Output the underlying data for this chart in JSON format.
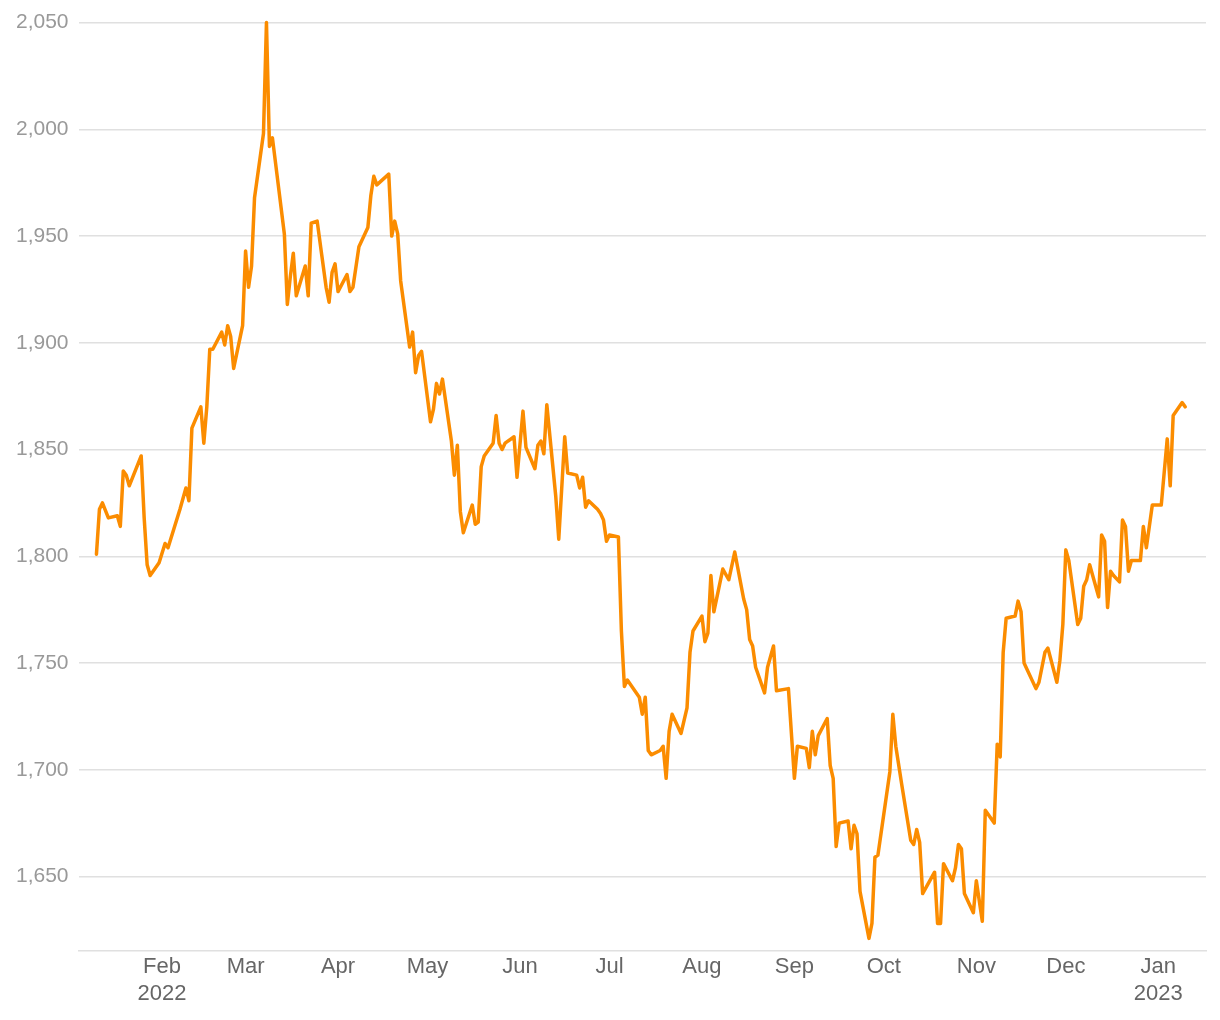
{
  "chart_data": {
    "type": "line",
    "xlim": [
      "2022-01-04",
      "2023-01-17"
    ],
    "ylim": [
      1615,
      2050
    ],
    "xticks": [
      {
        "value": "2022-02-01",
        "label": "Feb\n2022"
      },
      {
        "value": "2022-03-01",
        "label": "Mar"
      },
      {
        "value": "2022-04-01",
        "label": "Apr"
      },
      {
        "value": "2022-05-01",
        "label": "May"
      },
      {
        "value": "2022-06-01",
        "label": "Jun"
      },
      {
        "value": "2022-07-01",
        "label": "Jul"
      },
      {
        "value": "2022-08-01",
        "label": "Aug"
      },
      {
        "value": "2022-09-01",
        "label": "Sep"
      },
      {
        "value": "2022-10-01",
        "label": "Oct"
      },
      {
        "value": "2022-11-01",
        "label": "Nov"
      },
      {
        "value": "2022-12-01",
        "label": "Dec"
      },
      {
        "value": "2023-01-01",
        "label": "Jan\n2023"
      }
    ],
    "yticks": [
      {
        "value": 1650,
        "label": "1,650"
      },
      {
        "value": 1700,
        "label": "1,700"
      },
      {
        "value": 1750,
        "label": "1,750"
      },
      {
        "value": 1800,
        "label": "1,800"
      },
      {
        "value": 1850,
        "label": "1,850"
      },
      {
        "value": 1900,
        "label": "1,900"
      },
      {
        "value": 1950,
        "label": "1,950"
      },
      {
        "value": 2000,
        "label": "2,000"
      },
      {
        "value": 2050,
        "label": "2,050"
      }
    ],
    "grid": "y",
    "legend": false,
    "marker": "none",
    "line_style": "solid",
    "series": [
      {
        "color": "#fb8c00",
        "x": [
          "2022-01-10",
          "2022-01-11",
          "2022-01-12",
          "2022-01-14",
          "2022-01-17",
          "2022-01-18",
          "2022-01-19",
          "2022-01-20",
          "2022-01-21",
          "2022-01-25",
          "2022-01-26",
          "2022-01-27",
          "2022-01-28",
          "2022-01-31",
          "2022-02-02",
          "2022-02-03",
          "2022-02-07",
          "2022-02-09",
          "2022-02-10",
          "2022-02-11",
          "2022-02-14",
          "2022-02-15",
          "2022-02-16",
          "2022-02-17",
          "2022-02-18",
          "2022-02-21",
          "2022-02-22",
          "2022-02-23",
          "2022-02-24",
          "2022-02-25",
          "2022-02-28",
          "2022-03-01",
          "2022-03-02",
          "2022-03-03",
          "2022-03-04",
          "2022-03-07",
          "2022-03-08",
          "2022-03-09",
          "2022-03-10",
          "2022-03-14",
          "2022-03-15",
          "2022-03-16",
          "2022-03-17",
          "2022-03-18",
          "2022-03-21",
          "2022-03-22",
          "2022-03-23",
          "2022-03-25",
          "2022-03-28",
          "2022-03-29",
          "2022-03-30",
          "2022-03-31",
          "2022-04-01",
          "2022-04-04",
          "2022-04-05",
          "2022-04-06",
          "2022-04-08",
          "2022-04-11",
          "2022-04-12",
          "2022-04-13",
          "2022-04-14",
          "2022-04-18",
          "2022-04-19",
          "2022-04-20",
          "2022-04-21",
          "2022-04-22",
          "2022-04-25",
          "2022-04-26",
          "2022-04-27",
          "2022-04-28",
          "2022-04-29",
          "2022-05-02",
          "2022-05-03",
          "2022-05-04",
          "2022-05-05",
          "2022-05-06",
          "2022-05-09",
          "2022-05-10",
          "2022-05-11",
          "2022-05-12",
          "2022-05-13",
          "2022-05-16",
          "2022-05-17",
          "2022-05-18",
          "2022-05-19",
          "2022-05-20",
          "2022-05-23",
          "2022-05-24",
          "2022-05-25",
          "2022-05-26",
          "2022-05-27",
          "2022-05-30",
          "2022-05-31",
          "2022-06-02",
          "2022-06-03",
          "2022-06-06",
          "2022-06-07",
          "2022-06-08",
          "2022-06-09",
          "2022-06-10",
          "2022-06-13",
          "2022-06-14",
          "2022-06-16",
          "2022-06-17",
          "2022-06-20",
          "2022-06-21",
          "2022-06-22",
          "2022-06-23",
          "2022-06-24",
          "2022-06-27",
          "2022-06-28",
          "2022-06-29",
          "2022-06-30",
          "2022-07-01",
          "2022-07-04",
          "2022-07-05",
          "2022-07-06",
          "2022-07-07",
          "2022-07-11",
          "2022-07-12",
          "2022-07-13",
          "2022-07-14",
          "2022-07-15",
          "2022-07-18",
          "2022-07-19",
          "2022-07-20",
          "2022-07-21",
          "2022-07-22",
          "2022-07-25",
          "2022-07-27",
          "2022-07-28",
          "2022-07-29",
          "2022-08-01",
          "2022-08-02",
          "2022-08-03",
          "2022-08-04",
          "2022-08-05",
          "2022-08-08",
          "2022-08-10",
          "2022-08-12",
          "2022-08-15",
          "2022-08-16",
          "2022-08-17",
          "2022-08-18",
          "2022-08-19",
          "2022-08-22",
          "2022-08-23",
          "2022-08-25",
          "2022-08-26",
          "2022-08-30",
          "2022-09-01",
          "2022-09-02",
          "2022-09-05",
          "2022-09-06",
          "2022-09-07",
          "2022-09-08",
          "2022-09-09",
          "2022-09-12",
          "2022-09-13",
          "2022-09-14",
          "2022-09-15",
          "2022-09-16",
          "2022-09-19",
          "2022-09-20",
          "2022-09-21",
          "2022-09-22",
          "2022-09-23",
          "2022-09-26",
          "2022-09-27",
          "2022-09-28",
          "2022-09-29",
          "2022-10-03",
          "2022-10-04",
          "2022-10-05",
          "2022-10-07",
          "2022-10-10",
          "2022-10-11",
          "2022-10-12",
          "2022-10-13",
          "2022-10-14",
          "2022-10-18",
          "2022-10-19",
          "2022-10-20",
          "2022-10-21",
          "2022-10-24",
          "2022-10-25",
          "2022-10-26",
          "2022-10-27",
          "2022-10-28",
          "2022-10-31",
          "2022-11-01",
          "2022-11-03",
          "2022-11-04",
          "2022-11-07",
          "2022-11-08",
          "2022-11-09",
          "2022-11-10",
          "2022-11-11",
          "2022-11-14",
          "2022-11-15",
          "2022-11-16",
          "2022-11-17",
          "2022-11-21",
          "2022-11-22",
          "2022-11-24",
          "2022-11-25",
          "2022-11-28",
          "2022-11-29",
          "2022-11-30",
          "2022-12-01",
          "2022-12-02",
          "2022-12-05",
          "2022-12-06",
          "2022-12-07",
          "2022-12-08",
          "2022-12-09",
          "2022-12-12",
          "2022-12-13",
          "2022-12-14",
          "2022-12-15",
          "2022-12-16",
          "2022-12-17",
          "2022-12-19",
          "2022-12-20",
          "2022-12-21",
          "2022-12-22",
          "2022-12-23",
          "2022-12-26",
          "2022-12-27",
          "2022-12-28",
          "2022-12-30",
          "2023-01-02",
          "2023-01-04",
          "2023-01-05",
          "2023-01-06",
          "2023-01-09",
          "2023-01-10"
        ],
        "values": [
          1801,
          1822,
          1825,
          1818,
          1819,
          1814,
          1840,
          1838,
          1833,
          1847,
          1818,
          1796,
          1791,
          1797,
          1806,
          1804,
          1822,
          1832,
          1826,
          1860,
          1870,
          1853,
          1870,
          1897,
          1897,
          1905,
          1899,
          1908,
          1903,
          1888,
          1908,
          1943,
          1926,
          1936,
          1968,
          1998,
          2050,
          1992,
          1996,
          1951,
          1918,
          1931,
          1942,
          1922,
          1936,
          1922,
          1956,
          1957,
          1926,
          1919,
          1933,
          1937,
          1924,
          1932,
          1924,
          1926,
          1945,
          1954,
          1969,
          1978,
          1974,
          1979,
          1950,
          1957,
          1951,
          1929,
          1898,
          1905,
          1886,
          1894,
          1896,
          1863,
          1869,
          1881,
          1876,
          1883,
          1854,
          1838,
          1852,
          1821,
          1811,
          1824,
          1815,
          1816,
          1842,
          1847,
          1853,
          1866,
          1853,
          1850,
          1853,
          1856,
          1837,
          1868,
          1851,
          1841,
          1852,
          1854,
          1848,
          1871,
          1828,
          1808,
          1856,
          1839,
          1838,
          1832,
          1837,
          1823,
          1826,
          1822,
          1820,
          1817,
          1807,
          1810,
          1809,
          1765,
          1739,
          1742,
          1734,
          1726,
          1734,
          1709,
          1707,
          1709,
          1711,
          1696,
          1718,
          1726,
          1717,
          1729,
          1755,
          1765,
          1772,
          1760,
          1764,
          1791,
          1774,
          1794,
          1789,
          1802,
          1780,
          1775,
          1761,
          1758,
          1748,
          1736,
          1748,
          1758,
          1737,
          1738,
          1696,
          1711,
          1710,
          1701,
          1718,
          1707,
          1716,
          1724,
          1702,
          1696,
          1664,
          1675,
          1676,
          1663,
          1674,
          1670,
          1643,
          1621,
          1628,
          1659,
          1660,
          1699,
          1726,
          1711,
          1693,
          1667,
          1665,
          1672,
          1666,
          1642,
          1652,
          1628,
          1628,
          1656,
          1648,
          1654,
          1665,
          1663,
          1642,
          1633,
          1648,
          1629,
          1681,
          1675,
          1712,
          1706,
          1755,
          1771,
          1772,
          1779,
          1774,
          1750,
          1738,
          1741,
          1755,
          1757,
          1741,
          1751,
          1768,
          1803,
          1798,
          1768,
          1771,
          1786,
          1789,
          1796,
          1781,
          1810,
          1807,
          1776,
          1793,
          1791,
          1788,
          1817,
          1814,
          1793,
          1798,
          1798,
          1814,
          1804,
          1824,
          1824,
          1855,
          1833,
          1866,
          1872,
          1870
        ]
      }
    ]
  }
}
